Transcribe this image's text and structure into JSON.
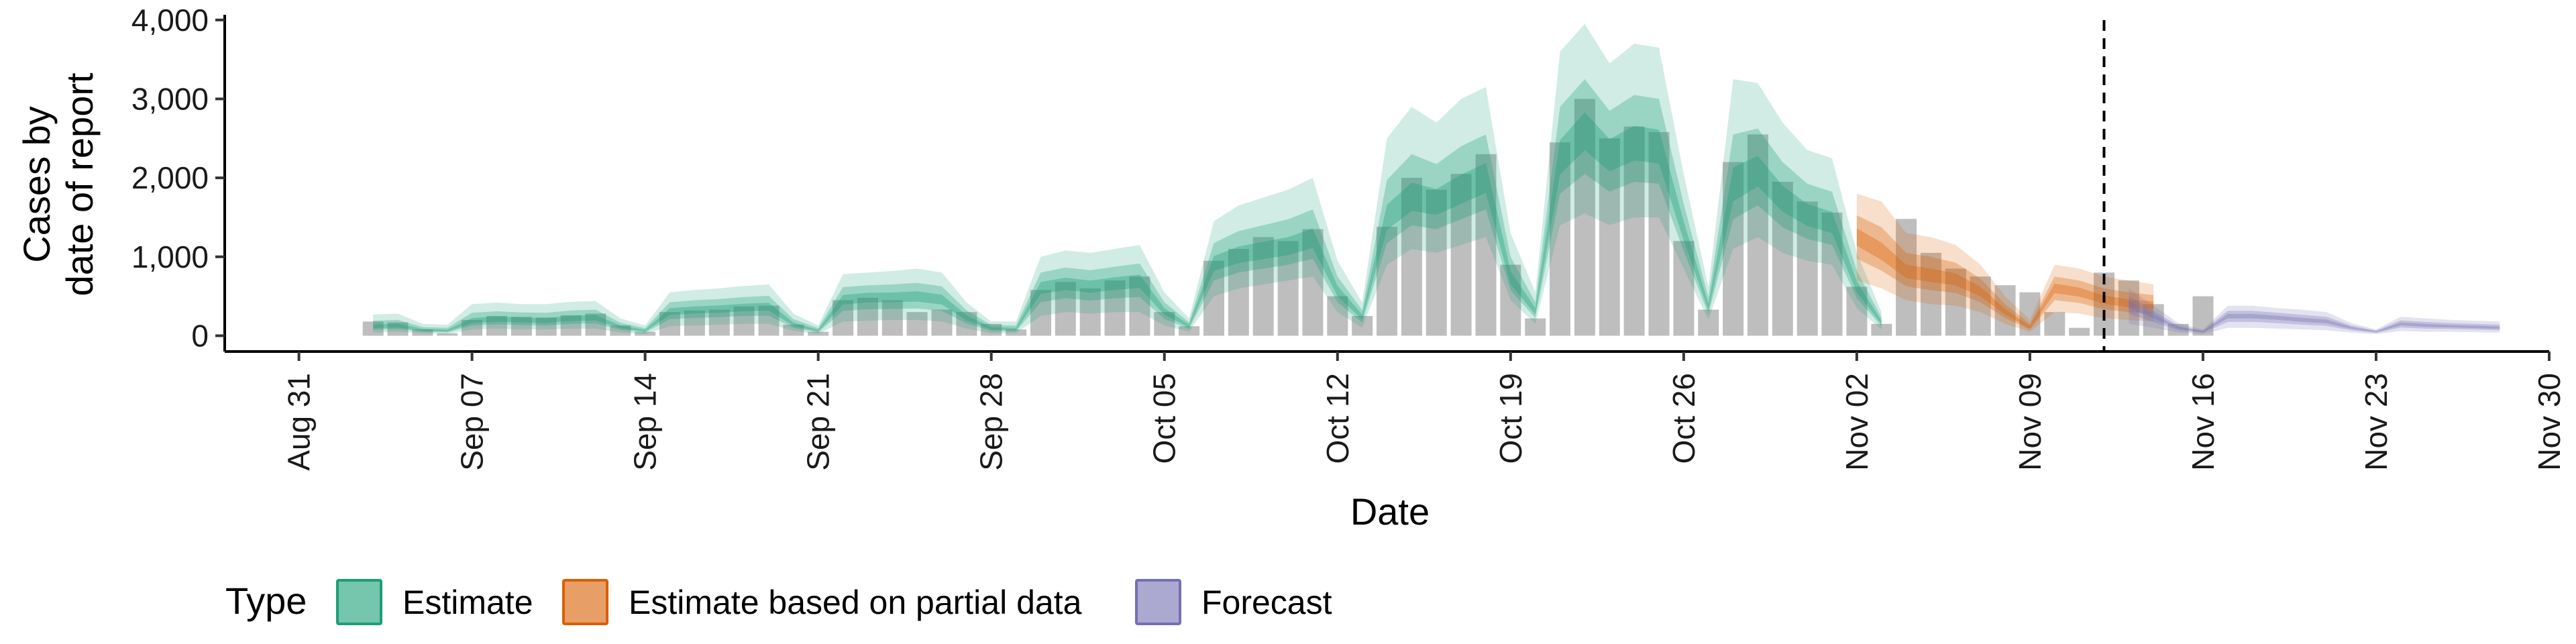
{
  "colors": {
    "bars": "#bebebe",
    "estimate": "#1b9e77",
    "partial": "#d95f02",
    "forecast": "#7570b3"
  },
  "chart_data": {
    "type": "bar",
    "xlabel": "Date",
    "ylabel_lines": [
      "Cases by",
      "date of report"
    ],
    "x_axis": {
      "min": "2020-08-28",
      "max": "2020-11-30",
      "ticks": [
        "2020-08-31",
        "2020-09-07",
        "2020-09-14",
        "2020-09-21",
        "2020-09-28",
        "2020-10-05",
        "2020-10-12",
        "2020-10-19",
        "2020-10-26",
        "2020-11-02",
        "2020-11-09",
        "2020-11-16",
        "2020-11-23",
        "2020-11-30"
      ],
      "tick_labels": [
        "Aug 31",
        "Sep 07",
        "Sep 14",
        "Sep 21",
        "Sep 28",
        "Oct 05",
        "Oct 12",
        "Oct 19",
        "Oct 26",
        "Nov 02",
        "Nov 09",
        "Nov 16",
        "Nov 23",
        "Nov 30"
      ]
    },
    "y_axis": {
      "min": -200,
      "max": 4100,
      "ticks": [
        0,
        1000,
        2000,
        3000,
        4000
      ],
      "tick_labels": [
        "0",
        "1,000",
        "2,000",
        "3,000",
        "4,000"
      ]
    },
    "reported_cases": {
      "start_date": "2020-09-03",
      "values": [
        180,
        170,
        80,
        30,
        200,
        250,
        240,
        230,
        260,
        280,
        130,
        50,
        300,
        320,
        330,
        370,
        380,
        140,
        50,
        450,
        480,
        450,
        300,
        330,
        300,
        150,
        80,
        580,
        680,
        600,
        700,
        750,
        300,
        120,
        950,
        1100,
        1250,
        1200,
        1350,
        500,
        250,
        1380,
        2000,
        1850,
        2050,
        2300,
        900,
        220,
        2450,
        3000,
        2500,
        2650,
        2580,
        1200,
        330,
        2200,
        2550,
        1950,
        1700,
        1560,
        620,
        150,
        1480,
        1050,
        850,
        750,
        640,
        550,
        300,
        100,
        800,
        700,
        400,
        150,
        500
      ]
    },
    "series": [
      {
        "name": "Estimate",
        "start_date": "2020-09-03",
        "median": [
          110,
          120,
          70,
          60,
          180,
          200,
          190,
          180,
          210,
          220,
          110,
          60,
          300,
          320,
          330,
          350,
          360,
          140,
          60,
          450,
          480,
          480,
          490,
          450,
          220,
          90,
          80,
          600,
          650,
          610,
          650,
          680,
          300,
          120,
          900,
          1000,
          1050,
          1100,
          1200,
          550,
          230,
          1450,
          1700,
          1650,
          1800,
          1950,
          700,
          300,
          2200,
          2550,
          2250,
          2400,
          2350,
          1300,
          350,
          1850,
          2050,
          1700,
          1500,
          1400,
          600,
          160
        ],
        "lower_90": [
          40,
          50,
          30,
          20,
          80,
          90,
          80,
          80,
          90,
          90,
          40,
          20,
          120,
          130,
          140,
          150,
          150,
          60,
          20,
          180,
          190,
          200,
          200,
          180,
          90,
          30,
          30,
          250,
          300,
          280,
          300,
          300,
          130,
          50,
          500,
          600,
          650,
          700,
          750,
          300,
          100,
          900,
          1100,
          1050,
          1150,
          1250,
          450,
          150,
          1400,
          1550,
          1400,
          1500,
          1500,
          850,
          200,
          1100,
          1250,
          1050,
          950,
          900,
          350,
          80
        ],
        "upper_90": [
          270,
          280,
          150,
          140,
          400,
          420,
          400,
          400,
          430,
          440,
          220,
          130,
          550,
          580,
          600,
          630,
          650,
          280,
          130,
          780,
          800,
          820,
          850,
          800,
          420,
          180,
          180,
          1000,
          1080,
          1050,
          1100,
          1150,
          550,
          220,
          1450,
          1650,
          1750,
          1850,
          2000,
          950,
          420,
          2500,
          2900,
          2700,
          3000,
          3150,
          1300,
          550,
          3600,
          3950,
          3450,
          3700,
          3650,
          2050,
          620,
          3250,
          3200,
          2700,
          2350,
          2250,
          1050,
          300
        ]
      },
      {
        "name": "Estimate based on partial data",
        "start_date": "2020-11-02",
        "median": [
          1250,
          1050,
          800,
          750,
          700,
          550,
          300,
          100,
          600,
          550,
          450,
          400,
          380
        ],
        "lower_90": [
          700,
          600,
          450,
          400,
          380,
          300,
          150,
          50,
          300,
          280,
          220,
          200,
          180
        ],
        "upper_90": [
          1800,
          1700,
          1300,
          1250,
          1150,
          900,
          500,
          200,
          900,
          850,
          750,
          700,
          650
        ]
      },
      {
        "name": "Forecast",
        "start_date": "2020-11-13",
        "median": [
          400,
          250,
          100,
          50,
          250,
          250,
          230,
          200,
          180,
          100,
          50,
          150,
          130,
          120,
          110,
          100
        ],
        "lower_90": [
          150,
          100,
          40,
          20,
          100,
          100,
          90,
          80,
          70,
          40,
          20,
          60,
          50,
          50,
          45,
          40
        ],
        "upper_90": [
          600,
          380,
          160,
          80,
          380,
          380,
          350,
          330,
          300,
          160,
          80,
          240,
          220,
          200,
          190,
          180
        ]
      }
    ],
    "vline": "2020-11-12",
    "legend": {
      "title": "Type",
      "position": "bottom",
      "items": [
        "Estimate",
        "Estimate based on partial data",
        "Forecast"
      ]
    }
  }
}
